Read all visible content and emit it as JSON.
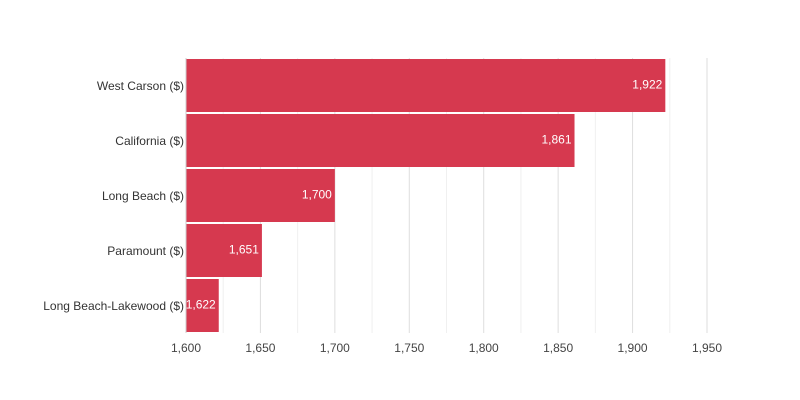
{
  "chart_data": {
    "type": "bar",
    "orientation": "horizontal",
    "categories": [
      "West Carson ($)",
      "California ($)",
      "Long Beach ($)",
      "Paramount ($)",
      "Long Beach-Lakewood ($)"
    ],
    "values": [
      1922,
      1861,
      1700,
      1651,
      1622
    ],
    "value_labels": [
      "1,922",
      "1,861",
      "1,700",
      "1,651",
      "1,622"
    ],
    "color": "#d6394f",
    "xlim": [
      1600,
      1950
    ],
    "xticks": [
      {
        "value": 1600,
        "label": "1,600"
      },
      {
        "value": 1650,
        "label": "1,650"
      },
      {
        "value": 1700,
        "label": "1,700"
      },
      {
        "value": 1750,
        "label": "1,750"
      },
      {
        "value": 1800,
        "label": "1,800"
      },
      {
        "value": 1850,
        "label": "1,850"
      },
      {
        "value": 1900,
        "label": "1,900"
      },
      {
        "value": 1950,
        "label": "1,950"
      }
    ],
    "minor_xticks": [
      1625,
      1675,
      1725,
      1775,
      1825,
      1875,
      1925
    ],
    "grid": true
  }
}
